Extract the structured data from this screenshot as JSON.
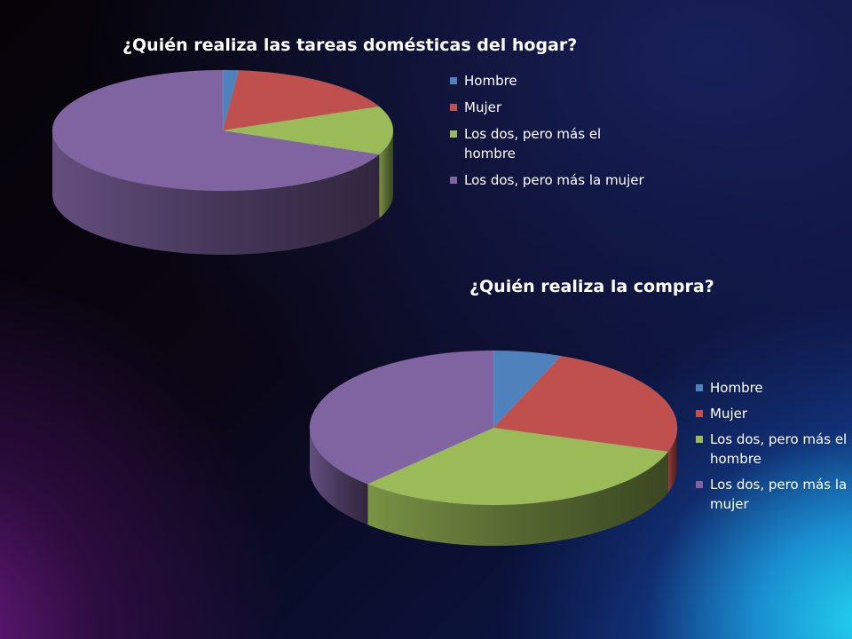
{
  "chart_data": [
    {
      "type": "pie",
      "title": "¿Quién realiza las tareas domésticas del hogar?",
      "categories": [
        "Hombre",
        "Mujer",
        "Los dos, pero más el hombre",
        "Los dos, pero más la mujer"
      ],
      "values": [
        1.5,
        17,
        13,
        68.5
      ],
      "colors": [
        "#4f81bd",
        "#c0504d",
        "#9bbb59",
        "#8064a2"
      ],
      "legend_position": "right",
      "style": "3d"
    },
    {
      "type": "pie",
      "title": "¿Quién realiza la compra?",
      "categories": [
        "Hombre",
        "Mujer",
        "Los dos, pero más el hombre",
        "Los dos, pero más la mujer"
      ],
      "values": [
        6,
        24,
        32,
        38
      ],
      "colors": [
        "#4f81bd",
        "#c0504d",
        "#9bbb59",
        "#8064a2"
      ],
      "legend_position": "right",
      "style": "3d"
    }
  ]
}
